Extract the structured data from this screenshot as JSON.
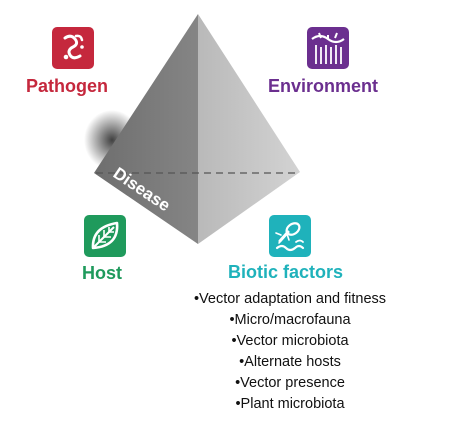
{
  "labels": {
    "pathogen": "Pathogen",
    "environment": "Environment",
    "host": "Host",
    "biotic": "Biotic factors",
    "disease": "Disease"
  },
  "biotic_factors": [
    "Vector adaptation and fitness",
    "Micro/macrofauna",
    "Vector microbiota",
    "Alternate hosts",
    "Vector presence",
    "Plant microbiota"
  ],
  "colors": {
    "pathogen": "#c5283d",
    "environment": "#6b2f8f",
    "host": "#1f9a5c",
    "biotic": "#1fb2bb"
  },
  "icons": {
    "pathogen": "pathogen-icon",
    "environment": "environment-icon",
    "host": "leaf-icon",
    "biotic": "vector-insect-icon"
  }
}
